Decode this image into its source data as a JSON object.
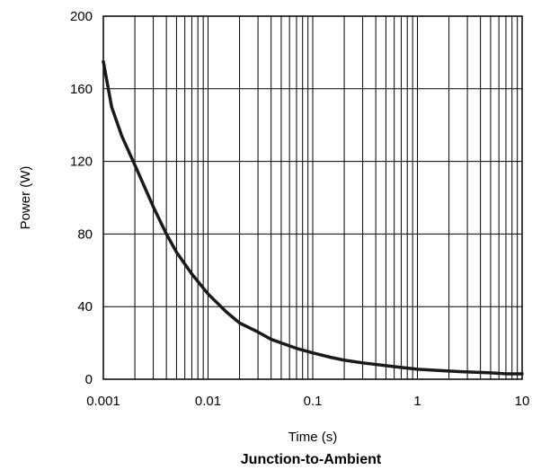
{
  "chart_data": {
    "type": "line",
    "title": "Junction-to-Ambient",
    "xlabel": "Time (s)",
    "ylabel": "Power  (W)",
    "x_scale": "log",
    "xlim": [
      0.001,
      10
    ],
    "ylim": [
      0,
      200
    ],
    "x_ticks": [
      {
        "value": 0.001,
        "label": "0.001"
      },
      {
        "value": 0.01,
        "label": "0.01"
      },
      {
        "value": 0.1,
        "label": "0.1"
      },
      {
        "value": 1,
        "label": "1"
      },
      {
        "value": 10,
        "label": "10"
      }
    ],
    "y_ticks": [
      {
        "value": 0,
        "label": "0"
      },
      {
        "value": 40,
        "label": "40"
      },
      {
        "value": 80,
        "label": "80"
      },
      {
        "value": 120,
        "label": "120"
      },
      {
        "value": 160,
        "label": "160"
      },
      {
        "value": 200,
        "label": "200"
      }
    ],
    "grid": true,
    "series": [
      {
        "color": "#1a1a1a",
        "x": [
          0.001,
          0.0012,
          0.0015,
          0.002,
          0.003,
          0.004,
          0.005,
          0.007,
          0.01,
          0.015,
          0.02,
          0.03,
          0.04,
          0.05,
          0.07,
          0.1,
          0.15,
          0.2,
          0.3,
          0.5,
          0.7,
          1,
          2,
          3,
          5,
          7,
          10
        ],
        "y": [
          175,
          150,
          134,
          118,
          95,
          80,
          70,
          58,
          47,
          37,
          31,
          26,
          22,
          20,
          17,
          14.5,
          12,
          10.5,
          9,
          7.5,
          6.5,
          5.5,
          4.5,
          4,
          3.5,
          3,
          3
        ]
      }
    ]
  }
}
